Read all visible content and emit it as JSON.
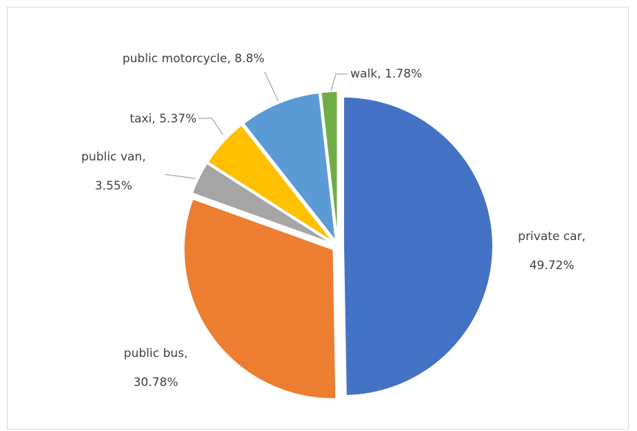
{
  "chart_data": {
    "type": "pie",
    "title": "",
    "slices": [
      {
        "name": "private car",
        "value": 49.72,
        "label_line1": "private car,",
        "label_line2": "49.72%",
        "color": "#4472c4"
      },
      {
        "name": "public bus",
        "value": 30.78,
        "label_line1": "public bus,",
        "label_line2": "30.78%",
        "color": "#ed7d31"
      },
      {
        "name": "public van",
        "value": 3.55,
        "label_line1": "public van,",
        "label_line2": "3.55%",
        "color": "#a5a5a5"
      },
      {
        "name": "taxi",
        "value": 5.37,
        "label_line1": "taxi, 5.37%",
        "label_line2": "",
        "color": "#ffc000"
      },
      {
        "name": "public motorcycle",
        "value": 8.8,
        "label_line1": "public motorcycle, 8.8%",
        "label_line2": "",
        "color": "#5b9bd5"
      },
      {
        "name": "walk",
        "value": 1.78,
        "label_line1": "walk, 1.78%",
        "label_line2": "",
        "color": "#70ad47"
      }
    ],
    "start_angle": "12 o'clock",
    "direction": "clockwise",
    "exploded": true,
    "legend": "none",
    "data_labels": "category name and percentage"
  }
}
